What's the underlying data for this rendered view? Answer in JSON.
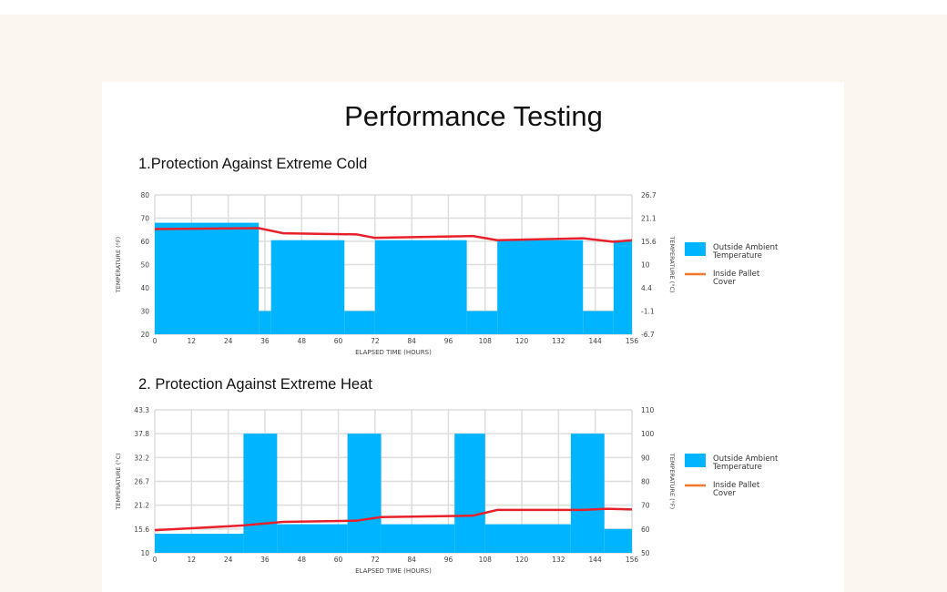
{
  "page_title": "Performance Testing",
  "colors": {
    "ambient": "#00b4ff",
    "inside_line": "#e8202a",
    "legend_line": "#f47a2a",
    "grid": "#dddddd"
  },
  "chart_data": [
    {
      "type": "area",
      "title": "1.Protection Against Extreme Cold",
      "xlabel": "ELAPSED TIME (HOURS)",
      "ylabel": "TEMPERATURE (°F)",
      "ylabel_right": "TEMPERATURE (°C)",
      "xlim": [
        0,
        156
      ],
      "ylim": [
        20,
        80
      ],
      "x_ticks": [
        "0",
        "12",
        "24",
        "36",
        "48",
        "60",
        "72",
        "84",
        "96",
        "108",
        "120",
        "132",
        "144",
        "156"
      ],
      "y_ticks": [
        "20",
        "30",
        "40",
        "50",
        "60",
        "70",
        "80"
      ],
      "y_ticks_right": [
        "-6.7",
        "-1.1",
        "4.4",
        "10",
        "15.6",
        "21.1",
        "26.7"
      ],
      "legend": [
        "Outside Ambient Temperature",
        "Inside Pallet Cover"
      ],
      "legend_position": "right",
      "series": [
        {
          "name": "Outside Ambient Temperature",
          "kind": "step",
          "steps": [
            [
              0,
              34,
              68
            ],
            [
              34,
              38,
              30
            ],
            [
              38,
              62,
              60.5
            ],
            [
              62,
              72,
              30
            ],
            [
              72,
              102,
              60.5
            ],
            [
              102,
              112,
              30
            ],
            [
              112,
              140,
              60.5
            ],
            [
              140,
              150,
              30
            ],
            [
              150,
              156,
              60.5
            ]
          ]
        },
        {
          "name": "Inside Pallet Cover",
          "kind": "line",
          "points": [
            [
              0,
              65.3
            ],
            [
              34,
              65.7
            ],
            [
              42,
              63.5
            ],
            [
              66,
              63
            ],
            [
              72,
              61.5
            ],
            [
              104,
              62.3
            ],
            [
              112,
              60.5
            ],
            [
              140,
              61.3
            ],
            [
              150,
              59.8
            ],
            [
              156,
              60.5
            ]
          ]
        }
      ]
    },
    {
      "type": "area",
      "title": "2. Protection Against Extreme Heat",
      "xlabel": "ELAPSED TIME (HOURS)",
      "ylabel": "TEMPERATURE (°C)",
      "ylabel_right": "TEMPERATURE (°F)",
      "xlim": [
        0,
        156
      ],
      "ylim": [
        50,
        110
      ],
      "x_ticks": [
        "0",
        "12",
        "24",
        "36",
        "48",
        "60",
        "72",
        "84",
        "96",
        "108",
        "120",
        "132",
        "144",
        "156"
      ],
      "y_ticks": [
        "10",
        "15.6",
        "21.2",
        "26.7",
        "32.2",
        "37.8",
        "43.3"
      ],
      "y_ticks_right": [
        "50",
        "60",
        "70",
        "80",
        "90",
        "100",
        "110"
      ],
      "legend": [
        "Outside Ambient Temperature",
        "Inside Pallet Cover"
      ],
      "legend_position": "right",
      "series": [
        {
          "name": "Outside Ambient Temperature",
          "kind": "step",
          "steps": [
            [
              0,
              29,
              58
            ],
            [
              29,
              40,
              100
            ],
            [
              40,
              63,
              62
            ],
            [
              63,
              74,
              100
            ],
            [
              74,
              98,
              62
            ],
            [
              98,
              108,
              100
            ],
            [
              108,
              136,
              62
            ],
            [
              136,
              147,
              100
            ],
            [
              147,
              156,
              60
            ]
          ]
        },
        {
          "name": "Inside Pallet Cover",
          "kind": "line",
          "points": [
            [
              0,
              59.5
            ],
            [
              12,
              60.3
            ],
            [
              29,
              61.5
            ],
            [
              42,
              63
            ],
            [
              66,
              63.5
            ],
            [
              74,
              65
            ],
            [
              104,
              65.6
            ],
            [
              112,
              68
            ],
            [
              140,
              68
            ],
            [
              148,
              68.5
            ],
            [
              156,
              68.2
            ]
          ]
        }
      ]
    }
  ]
}
